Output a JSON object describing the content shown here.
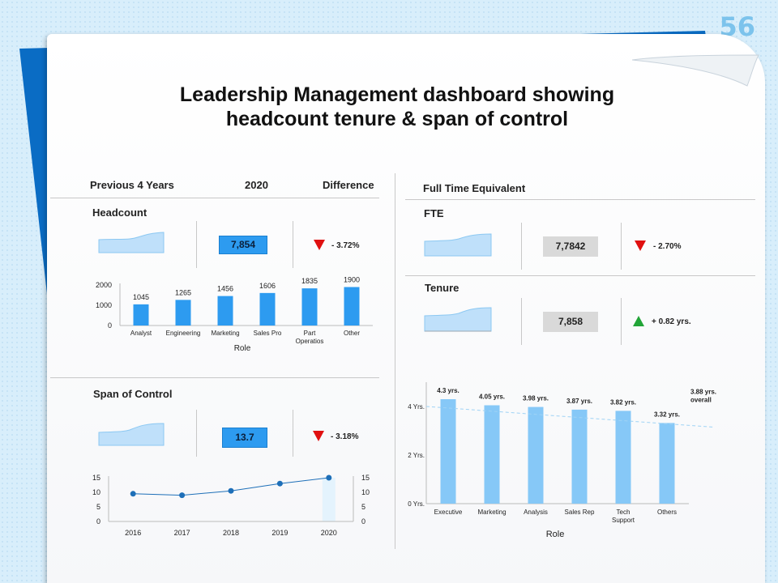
{
  "slide_number": "56",
  "title_line1": "Leadership Management dashboard showing",
  "title_line2": "headcount tenure & span of control",
  "left": {
    "col_prev": "Previous 4 Years",
    "col_year": "2020",
    "col_diff": "Difference",
    "headcount_label": "Headcount",
    "headcount_value": "7,854",
    "headcount_delta": "- 3.72%",
    "span_label": "Span of Control",
    "span_value": "13.7",
    "span_delta": "- 3.18%"
  },
  "right": {
    "fte_header": "Full Time Equivalent",
    "fte_label": "FTE",
    "fte_value": "7,7842",
    "fte_delta": "- 2.70%",
    "tenure_label": "Tenure",
    "tenure_value": "7,858",
    "tenure_delta": "+ 0.82 yrs."
  },
  "colors": {
    "bar": "#2d9bf0",
    "bar_light": "#86c8f7",
    "spark_fill": "#bfe0fa",
    "spark_line": "#8cc8f2",
    "line": "#1e6fb8",
    "down": "#e01010",
    "up": "#22a538"
  },
  "chart_data": [
    {
      "type": "bar",
      "categories": [
        "Analyst",
        "Engineering",
        "Marketing",
        "Sales Pro",
        "Part Operatios",
        "Other"
      ],
      "values": [
        1045,
        1265,
        1456,
        1606,
        1835,
        1900
      ],
      "xlabel": "Role",
      "ylabel": "",
      "ylim": [
        0,
        2000
      ],
      "yticks": [
        "0",
        "1000",
        "2000"
      ]
    },
    {
      "type": "line",
      "x": [
        "2016",
        "2017",
        "2018",
        "2019",
        "2020"
      ],
      "values": [
        9.5,
        9,
        10.5,
        13,
        15
      ],
      "ylim": [
        0,
        15
      ],
      "yticks": [
        "0",
        "5",
        "10",
        "15"
      ]
    },
    {
      "type": "bar",
      "categories": [
        "Executive",
        "Marketing",
        "Analysis",
        "Sales Rep",
        "Tech Support",
        "Others"
      ],
      "values": [
        4.3,
        4.05,
        3.98,
        3.87,
        3.82,
        3.32
      ],
      "data_labels": [
        "4.3 yrs.",
        "4.05 yrs.",
        "3.98 yrs.",
        "3.87 yrs.",
        "3.82 yrs.",
        "3.32 yrs."
      ],
      "reference": {
        "value": 3.88,
        "label_line1": "3.88 yrs.",
        "label_line2": "overall"
      },
      "xlabel": "Role",
      "ylim": [
        0,
        5
      ],
      "yticks": [
        "0 Yrs.",
        "2 Yrs.",
        "4 Yrs."
      ]
    }
  ]
}
